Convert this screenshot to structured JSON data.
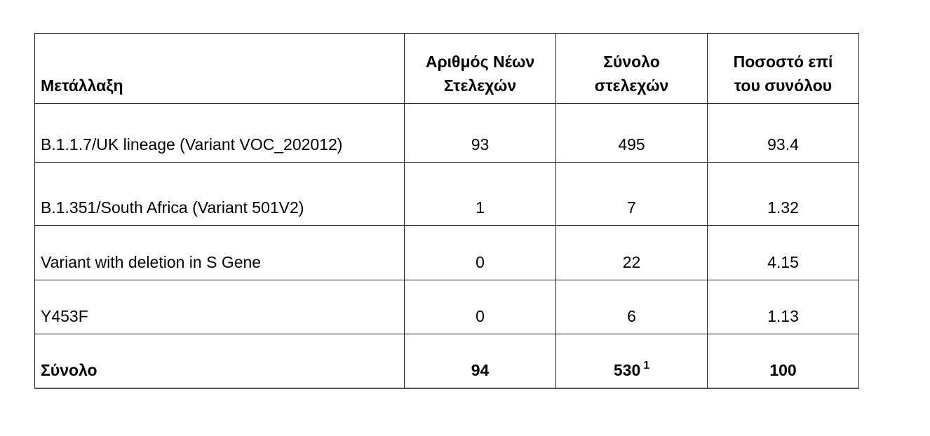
{
  "table": {
    "header": [
      [
        "Μετάλλαξη"
      ],
      [
        "Αριθμός Νέων",
        "Στελεχών"
      ],
      [
        "Σύνολο",
        "στελεχών"
      ],
      [
        "Ποσοστό επί",
        "του συνόλου"
      ]
    ],
    "rows": [
      [
        "B.1.1.7/UK lineage (Variant VOC_202012)",
        93,
        495,
        93.4
      ],
      [
        "B.1.351/South Africa (Variant 501V2)",
        1,
        7,
        1.32
      ],
      [
        "Variant with deletion in S Gene",
        0,
        22,
        4.15
      ],
      [
        "Y453F",
        0,
        6,
        1.13
      ]
    ],
    "total": [
      "Σύνολο",
      94,
      530,
      100
    ],
    "total_footnote": "1"
  }
}
